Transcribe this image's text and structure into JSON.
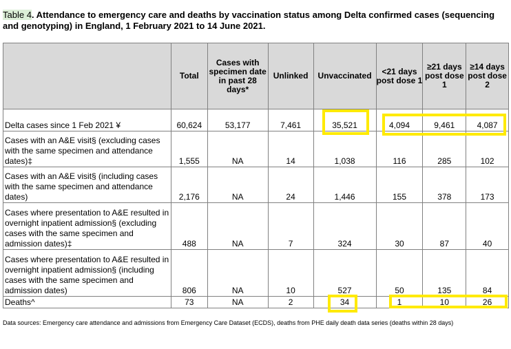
{
  "title_tag": "Table 4",
  "title_rest": ". Attendance to emergency care and deaths by vaccination status among Delta confirmed cases (sequencing and genotyping) in England, 1 February 2021 to 14 June 2021.",
  "columns": [
    "",
    "Total",
    "Cases with specimen date in past 28 days*",
    "Unlinked",
    "Unvaccinated",
    "<21 days post dose 1",
    "≥21 days post dose 1",
    "≥14 days post dose 2"
  ],
  "rows": [
    {
      "label": "Delta cases since 1 Feb 2021 ¥",
      "values": [
        "60,624",
        "53,177",
        "7,461",
        "35,521",
        "4,094",
        "9,461",
        "4,087"
      ]
    },
    {
      "label": "Cases with an A&E visit§ (excluding cases with the same specimen and attendance dates)‡",
      "values": [
        "1,555",
        "NA",
        "14",
        "1,038",
        "116",
        "285",
        "102"
      ]
    },
    {
      "label": "Cases with an A&E visit§ (including cases with the same specimen and attendance dates)",
      "values": [
        "2,176",
        "NA",
        "24",
        "1,446",
        "155",
        "378",
        "173"
      ]
    },
    {
      "label": "Cases where presentation to A&E resulted in overnight inpatient admission§ (excluding cases with the same specimen and admission dates)‡",
      "values": [
        "488",
        "NA",
        "7",
        "324",
        "30",
        "87",
        "40"
      ]
    },
    {
      "label": "Cases where presentation to A&E resulted in overnight inpatient admission§ (including cases with the same specimen and admission dates)",
      "values": [
        "806",
        "NA",
        "10",
        "527",
        "50",
        "135",
        "84"
      ]
    },
    {
      "label": "Deaths^",
      "values": [
        "73",
        "NA",
        "2",
        "34",
        "1",
        "10",
        "26"
      ]
    }
  ],
  "source": "Data sources: Emergency care attendance and admissions from Emergency Care Dataset (ECDS), deaths from PHE daily death data series (deaths within 28 days)"
}
